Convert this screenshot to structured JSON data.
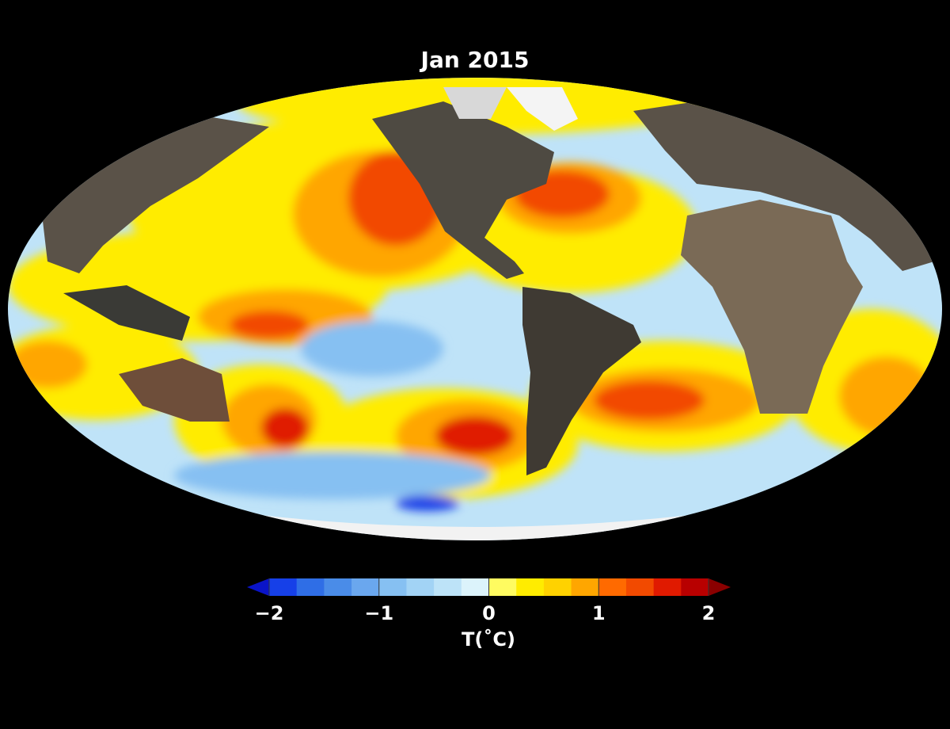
{
  "title": "Jan 2015",
  "colorbar": {
    "levels": [
      -2,
      -1.75,
      -1.5,
      -1.25,
      -1,
      -0.75,
      -0.5,
      -0.25,
      0,
      0.25,
      0.5,
      0.75,
      1,
      1.25,
      1.5,
      1.75,
      2
    ],
    "colors": [
      "#1640e8",
      "#2f6ee6",
      "#4a8ce8",
      "#6aa7ee",
      "#86c0f2",
      "#a2d3f5",
      "#bde3f8",
      "#dcf3fb",
      "#fffb60",
      "#ffec00",
      "#ffd200",
      "#ffa600",
      "#ff6a00",
      "#f24a00",
      "#e01a00",
      "#b80000"
    ],
    "under_color": "#0a14c8",
    "over_color": "#8a0000",
    "ticks": [
      {
        "value": -2,
        "label": "−2"
      },
      {
        "value": -1,
        "label": "−1"
      },
      0,
      1,
      2
    ],
    "label": "T(˚C)"
  }
}
